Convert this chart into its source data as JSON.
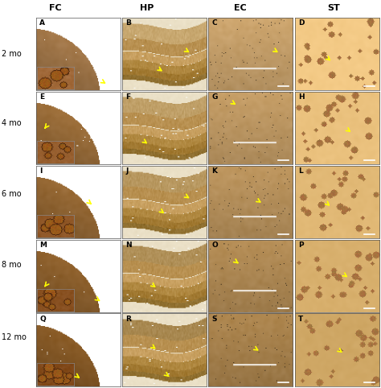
{
  "col_headers": [
    "FC",
    "HP",
    "EC",
    "ST"
  ],
  "row_labels": [
    "2 mo",
    "4 mo",
    "6 mo",
    "8 mo",
    "12 mo"
  ],
  "panel_labels": [
    [
      "A",
      "B",
      "C",
      "D"
    ],
    [
      "E",
      "F",
      "G",
      "H"
    ],
    [
      "I",
      "J",
      "K",
      "L"
    ],
    [
      "M",
      "N",
      "O",
      "P"
    ],
    [
      "Q",
      "R",
      "S",
      "T"
    ]
  ],
  "bg_color": "#ffffff",
  "header_color": "#000000",
  "row_label_color": "#000000",
  "panel_label_color": "#000000",
  "header_fontsize": 8,
  "row_label_fontsize": 7,
  "panel_label_fontsize": 6.5,
  "figsize": [
    4.74,
    4.82
  ],
  "dpi": 100,
  "fc_base": [
    "#c8935a",
    "#c08848",
    "#b88040",
    "#b07838",
    "#a87030"
  ],
  "hp_base": [
    "#c8a870",
    "#c0a068",
    "#b89860",
    "#b09058",
    "#a88850"
  ],
  "ec_base": [
    "#d0a870",
    "#c8a068",
    "#c09860",
    "#b89058",
    "#b08850"
  ],
  "st_base": [
    "#d4b880",
    "#ccb078",
    "#c4a870",
    "#bca068",
    "#b49860"
  ],
  "fc_inset_base": [
    "#a06838",
    "#986030",
    "#905828",
    "#885020",
    "#804818"
  ],
  "arrow_color": "#ffff00",
  "label_color": "#000000",
  "white_color": "#ffffff"
}
